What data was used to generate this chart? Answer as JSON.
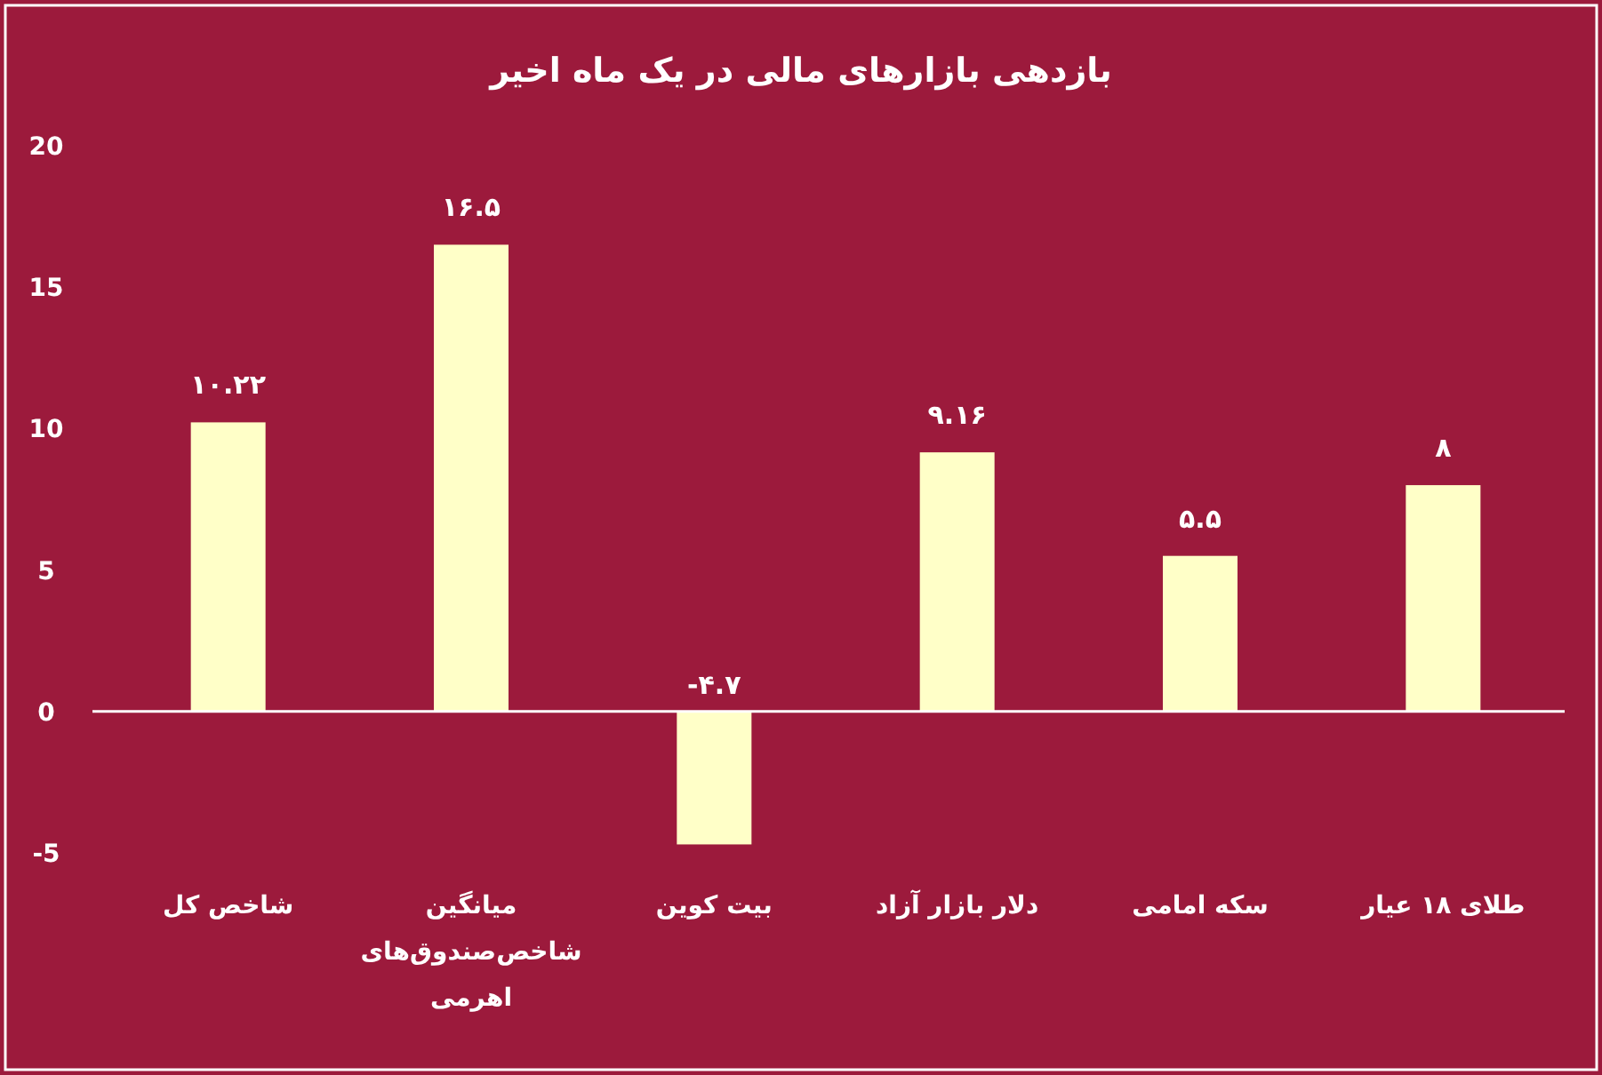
{
  "chart_data": {
    "type": "bar",
    "title": "بازدهی بازارهای مالی در یک ماه اخیر",
    "categories": [
      "شاخص کل",
      "میانگین شاخص‌صندوق‌های اهرمی",
      "بیت کوین",
      "دلار بازار آزاد",
      "سکه امامی",
      "طلای ۱۸ عیار"
    ],
    "values": [
      10.22,
      16.5,
      -4.7,
      9.16,
      5.5,
      8
    ],
    "value_labels": [
      "۱۰.۲۲",
      "۱۶.۵",
      "-۴.۷",
      "۹.۱۶",
      "۵.۵",
      "۸"
    ],
    "color": "#ffffc8",
    "ylim": [
      -5,
      20
    ],
    "yticks": [
      -5,
      0,
      5,
      10,
      15,
      20
    ]
  }
}
